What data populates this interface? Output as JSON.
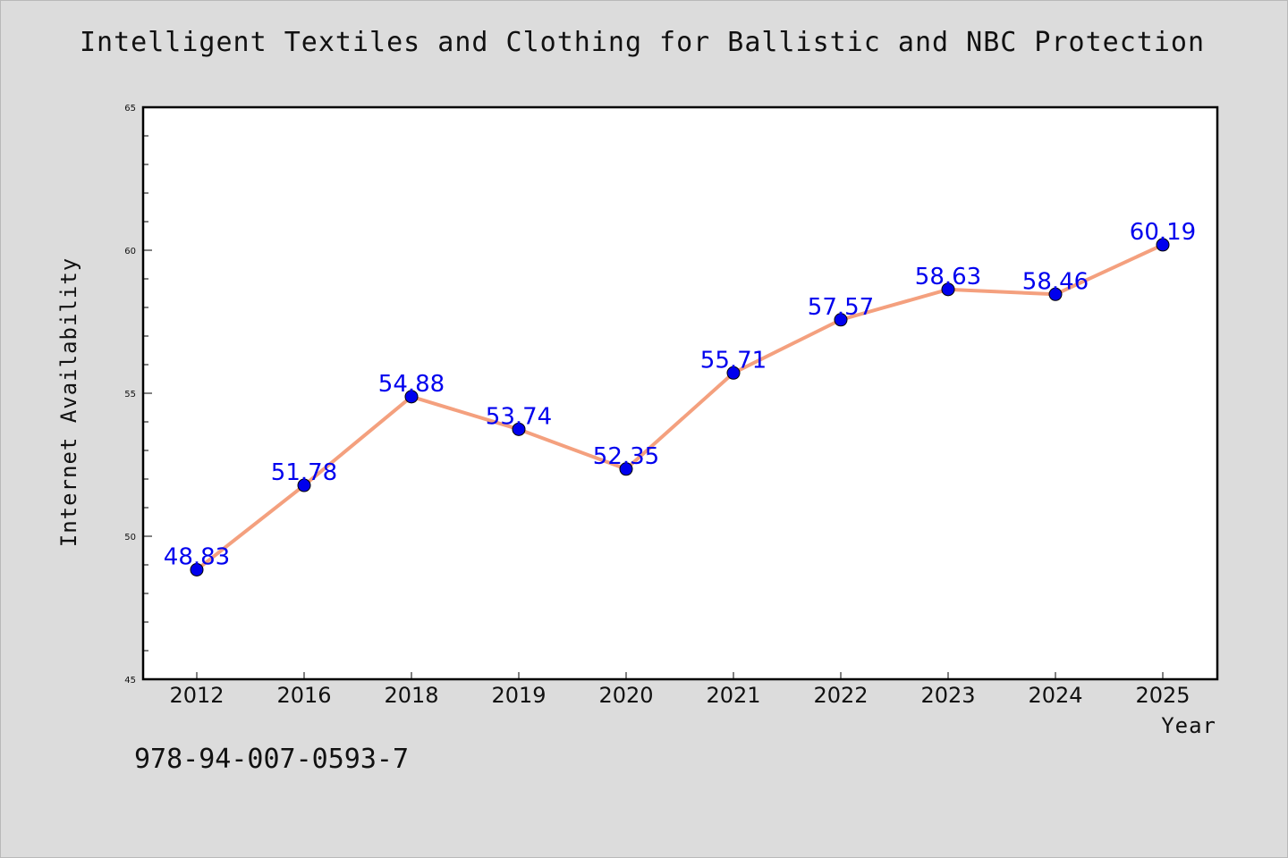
{
  "chart_data": {
    "type": "line",
    "title": "Intelligent Textiles and Clothing for Ballistic and NBC Protection",
    "xlabel": "Year",
    "ylabel": "Internet Availability",
    "categories": [
      "2012",
      "2016",
      "2018",
      "2019",
      "2020",
      "2021",
      "2022",
      "2023",
      "2024",
      "2025"
    ],
    "series": [
      {
        "values": [
          48.83,
          51.78,
          54.88,
          53.74,
          52.35,
          55.71,
          57.57,
          58.63,
          58.46,
          60.19
        ]
      }
    ],
    "ylim": [
      45,
      65
    ],
    "yticks": [
      45,
      50,
      55,
      60,
      65
    ],
    "data_labels": [
      "48.83",
      "51.78",
      "54.88",
      "53.74",
      "52.35",
      "55.71",
      "57.57",
      "58.63",
      "58.46",
      "60.19"
    ],
    "grid": false,
    "legend": "none",
    "colors": {
      "line": "#f4a07e",
      "marker": "#0000ee",
      "label": "#0000ee",
      "plot_bg": "#ffffff",
      "page_bg": "#dcdcdc"
    }
  },
  "footer": {
    "code": "978-94-007-0593-7"
  }
}
